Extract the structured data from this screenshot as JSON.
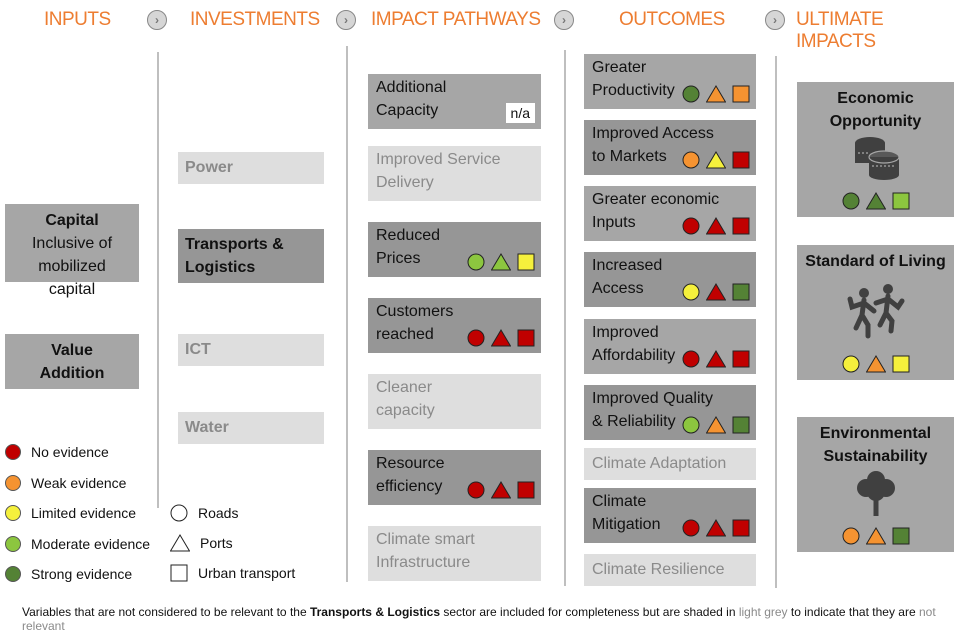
{
  "colors": {
    "red": "#c00000",
    "orange": "#f59331",
    "yellow": "#f5f03c",
    "lightgreen": "#8cc63f",
    "darkgreen": "#548235",
    "header": "#ed7d31"
  },
  "headers": [
    "INPUTS",
    "INVESTMENTS",
    "IMPACT PATHWAYS",
    "OUTCOMES",
    "ULTIMATE IMPACTS"
  ],
  "inputs": [
    {
      "title": "Capital",
      "sub": "Inclusive of mobilized capital"
    },
    {
      "title": "Value Addition"
    }
  ],
  "investments": [
    {
      "label": "Power",
      "relevant": false
    },
    {
      "label": "Transports & Logistics",
      "relevant": true
    },
    {
      "label": "ICT",
      "relevant": false
    },
    {
      "label": "Water",
      "relevant": false
    }
  ],
  "pathways": [
    {
      "l1": "Additional",
      "l2": "Capacity",
      "relevant": true,
      "na": "n/a"
    },
    {
      "l1": "Improved Service",
      "l2": "Delivery",
      "relevant": false
    },
    {
      "l1": "Reduced",
      "l2": "Prices",
      "relevant": true,
      "ev": [
        "lightgreen",
        "lightgreen",
        "yellow"
      ]
    },
    {
      "l1": "Customers",
      "l2": "reached",
      "relevant": true,
      "ev": [
        "red",
        "red",
        "red"
      ]
    },
    {
      "l1": "Cleaner",
      "l2": "capacity",
      "relevant": false
    },
    {
      "l1": "Resource",
      "l2": "efficiency",
      "relevant": true,
      "ev": [
        "red",
        "red",
        "red"
      ]
    },
    {
      "l1": "Climate smart",
      "l2": "Infrastructure",
      "relevant": false
    }
  ],
  "outcomes": [
    {
      "l1": "Greater",
      "l2": "Productivity",
      "ev": [
        "darkgreen",
        "orange",
        "orange"
      ]
    },
    {
      "l1": "Improved Access",
      "l2": "to Markets",
      "ev": [
        "orange",
        "yellow",
        "red"
      ]
    },
    {
      "l1": "Greater economic",
      "l2": "Inputs",
      "ev": [
        "red",
        "red",
        "red"
      ]
    },
    {
      "l1": "Increased",
      "l2": "Access",
      "ev": [
        "yellow",
        "red",
        "darkgreen"
      ]
    },
    {
      "l1": "Improved",
      "l2": "Affordability",
      "ev": [
        "red",
        "red",
        "red"
      ]
    },
    {
      "l1": "Improved Quality",
      "l2": "& Reliability",
      "ev": [
        "lightgreen",
        "orange",
        "darkgreen"
      ]
    },
    {
      "l1": "Climate Adaptation",
      "l2": "",
      "relevant": false
    },
    {
      "l1": "Climate",
      "l2": "Mitigation",
      "ev": [
        "red",
        "red",
        "red"
      ]
    },
    {
      "l1": "Climate Resilience",
      "l2": "",
      "relevant": false
    }
  ],
  "ultimate": [
    {
      "l1": "Economic",
      "l2": "Opportunity",
      "icon": "coins-icon",
      "ev": [
        "darkgreen",
        "darkgreen",
        "lightgreen"
      ]
    },
    {
      "l1": "Standard of Living",
      "l2": "",
      "icon": "people-dancing-icon",
      "ev": [
        "yellow",
        "orange",
        "yellow"
      ]
    },
    {
      "l1": "Environmental",
      "l2": "Sustainability",
      "icon": "tree-icon",
      "ev": [
        "orange",
        "orange",
        "darkgreen"
      ]
    }
  ],
  "evidence_legend": [
    {
      "label": "No evidence",
      "color": "red"
    },
    {
      "label": "Weak evidence",
      "color": "orange"
    },
    {
      "label": "Limited evidence",
      "color": "yellow"
    },
    {
      "label": "Moderate evidence",
      "color": "lightgreen"
    },
    {
      "label": "Strong evidence",
      "color": "darkgreen"
    }
  ],
  "shape_legend": [
    {
      "label": "Roads",
      "shape": "circle"
    },
    {
      "label": "Ports",
      "shape": "triangle"
    },
    {
      "label": "Urban transport",
      "shape": "square"
    }
  ],
  "footnote": {
    "p1": "Variables that are not considered to be relevant to the ",
    "bold": "Transports & Logistics",
    "p2": " sector are included for completeness but are shaded in ",
    "grey": "light grey",
    "p3": " to indicate that they are ",
    "nr": "not relevant"
  }
}
